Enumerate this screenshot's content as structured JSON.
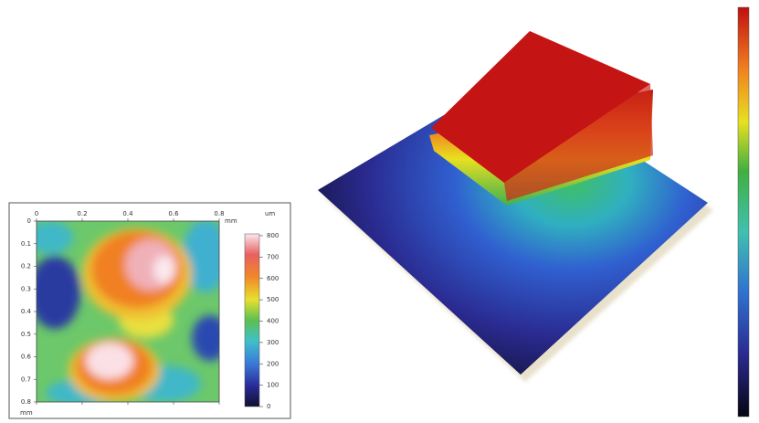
{
  "heatmap": {
    "x_ticks": [
      "0",
      "0.2",
      "0.4",
      "0.6",
      "0.8"
    ],
    "x_unit": "mm",
    "y_ticks": [
      "0",
      "0.1",
      "0.2",
      "0.3",
      "0.4",
      "0.5",
      "0.6",
      "0.7",
      "0.8"
    ],
    "y_unit": "mm",
    "colorbar_unit": "um",
    "colorbar_ticks": [
      "0",
      "100",
      "200",
      "300",
      "400",
      "500",
      "600",
      "700",
      "800"
    ]
  }
}
